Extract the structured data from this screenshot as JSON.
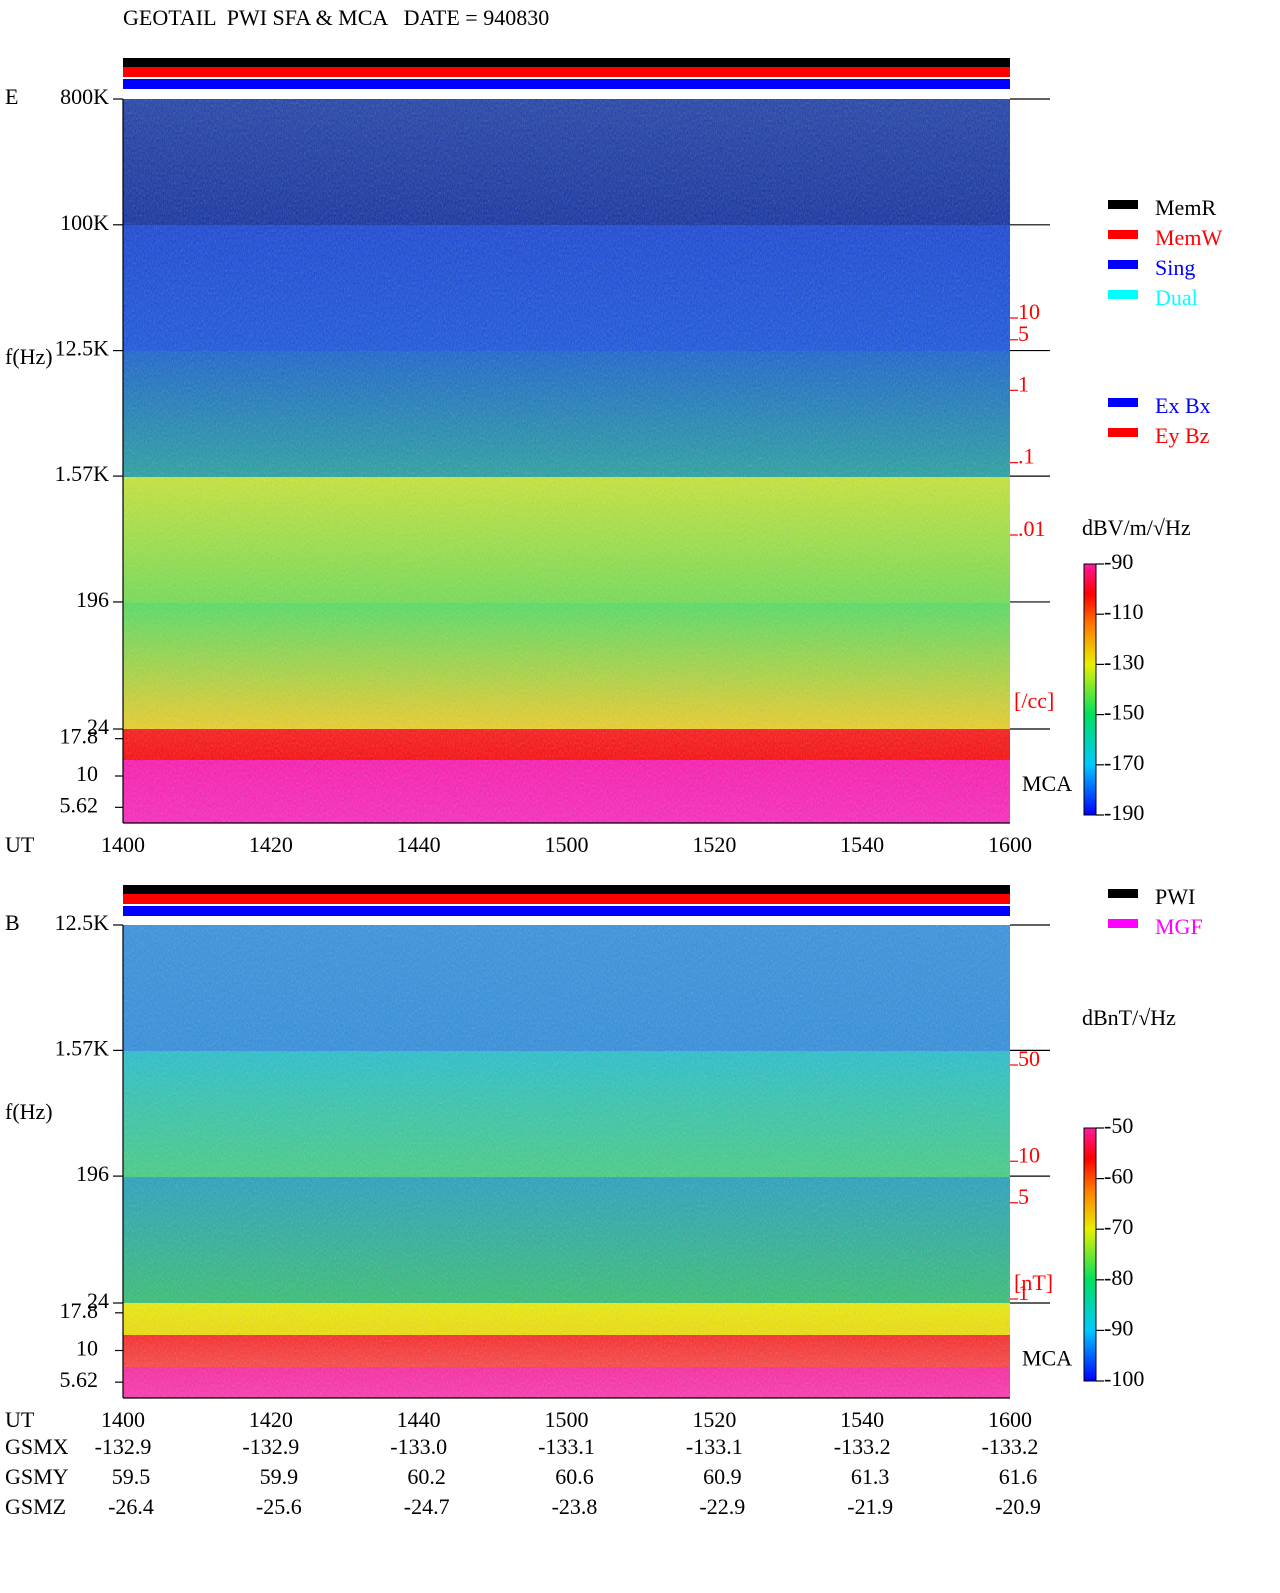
{
  "title": "GEOTAIL  PWI SFA & MCA   DATE = 940830",
  "chart_data": [
    {
      "type": "spectrogram",
      "panel": "E",
      "ylabel": "f(Hz)",
      "xlabel": "UT",
      "y_scale": "log",
      "ylim": [
        24,
        800000
      ],
      "yticks": [
        {
          "value": 800000,
          "label": "800K"
        },
        {
          "value": 100000,
          "label": "100K"
        },
        {
          "value": 12500,
          "label": "12.5K"
        },
        {
          "value": 1570,
          "label": "1.57K"
        },
        196,
        24
      ],
      "mca_label": "MCA",
      "mca_ticks": [
        17.8,
        10,
        5.62
      ],
      "xticks": [
        "1400",
        "1420",
        "1440",
        "1500",
        "1520",
        "1540",
        "1600"
      ],
      "y2label": "[/cc]",
      "y2_scale": "log",
      "y2lim": [
        0.01,
        10
      ],
      "y2ticks": [
        10,
        5,
        1,
        {
          "value": 0.1,
          "label": ".1"
        },
        {
          "value": 0.01,
          "label": ".01"
        }
      ],
      "colorbar_label": "dBV/m/√Hz",
      "clim": [
        -190,
        -90
      ],
      "colorbar_ticks": [
        -90,
        -110,
        -130,
        -150,
        -170,
        -190
      ],
      "legend": [
        {
          "name": "MemR",
          "color": "#000000"
        },
        {
          "name": "MemW",
          "color": "#ff0000"
        },
        {
          "name": "Sing",
          "color": "#0000ff"
        },
        {
          "name": "Dual",
          "color": "#00ffff"
        }
      ],
      "channel_legend": [
        {
          "name": "Ex Bx",
          "color": "#0000ff"
        },
        {
          "name": "Ey Bz",
          "color": "#ff0000"
        }
      ]
    },
    {
      "type": "spectrogram",
      "panel": "B",
      "ylabel": "f(Hz)",
      "xlabel": "UT",
      "y_scale": "log",
      "ylim": [
        24,
        12500
      ],
      "yticks": [
        {
          "value": 12500,
          "label": "12.5K"
        },
        {
          "value": 1570,
          "label": "1.57K"
        },
        196,
        24
      ],
      "mca_label": "MCA",
      "mca_ticks": [
        17.8,
        10,
        5.62
      ],
      "xticks": [
        "1400",
        "1420",
        "1440",
        "1500",
        "1520",
        "1540",
        "1600"
      ],
      "y2label": "[nT]",
      "y2_scale": "log",
      "y2lim": [
        1,
        50
      ],
      "y2ticks": [
        50,
        10,
        5,
        1
      ],
      "colorbar_label": "dBnT/√Hz",
      "clim": [
        -100,
        -50
      ],
      "colorbar_ticks": [
        -50,
        -60,
        -70,
        -80,
        -90,
        -100
      ],
      "legend": [
        {
          "name": "PWI",
          "color": "#000000"
        },
        {
          "name": "MGF",
          "color": "#ff00ff"
        }
      ]
    }
  ],
  "orbit": {
    "rows": [
      {
        "label": "GSMX",
        "values": [
          "-132.9",
          "-132.9",
          "-133.0",
          "-133.1",
          "-133.1",
          "-133.2",
          "-133.2"
        ]
      },
      {
        "label": "GSMY",
        "values": [
          "59.5",
          "59.9",
          "60.2",
          "60.6",
          "60.9",
          "61.3",
          "61.6"
        ]
      },
      {
        "label": "GSMZ",
        "values": [
          "-26.4",
          "-25.6",
          "-24.7",
          "-23.8",
          "-22.9",
          "-21.9",
          "-20.9"
        ]
      }
    ]
  }
}
